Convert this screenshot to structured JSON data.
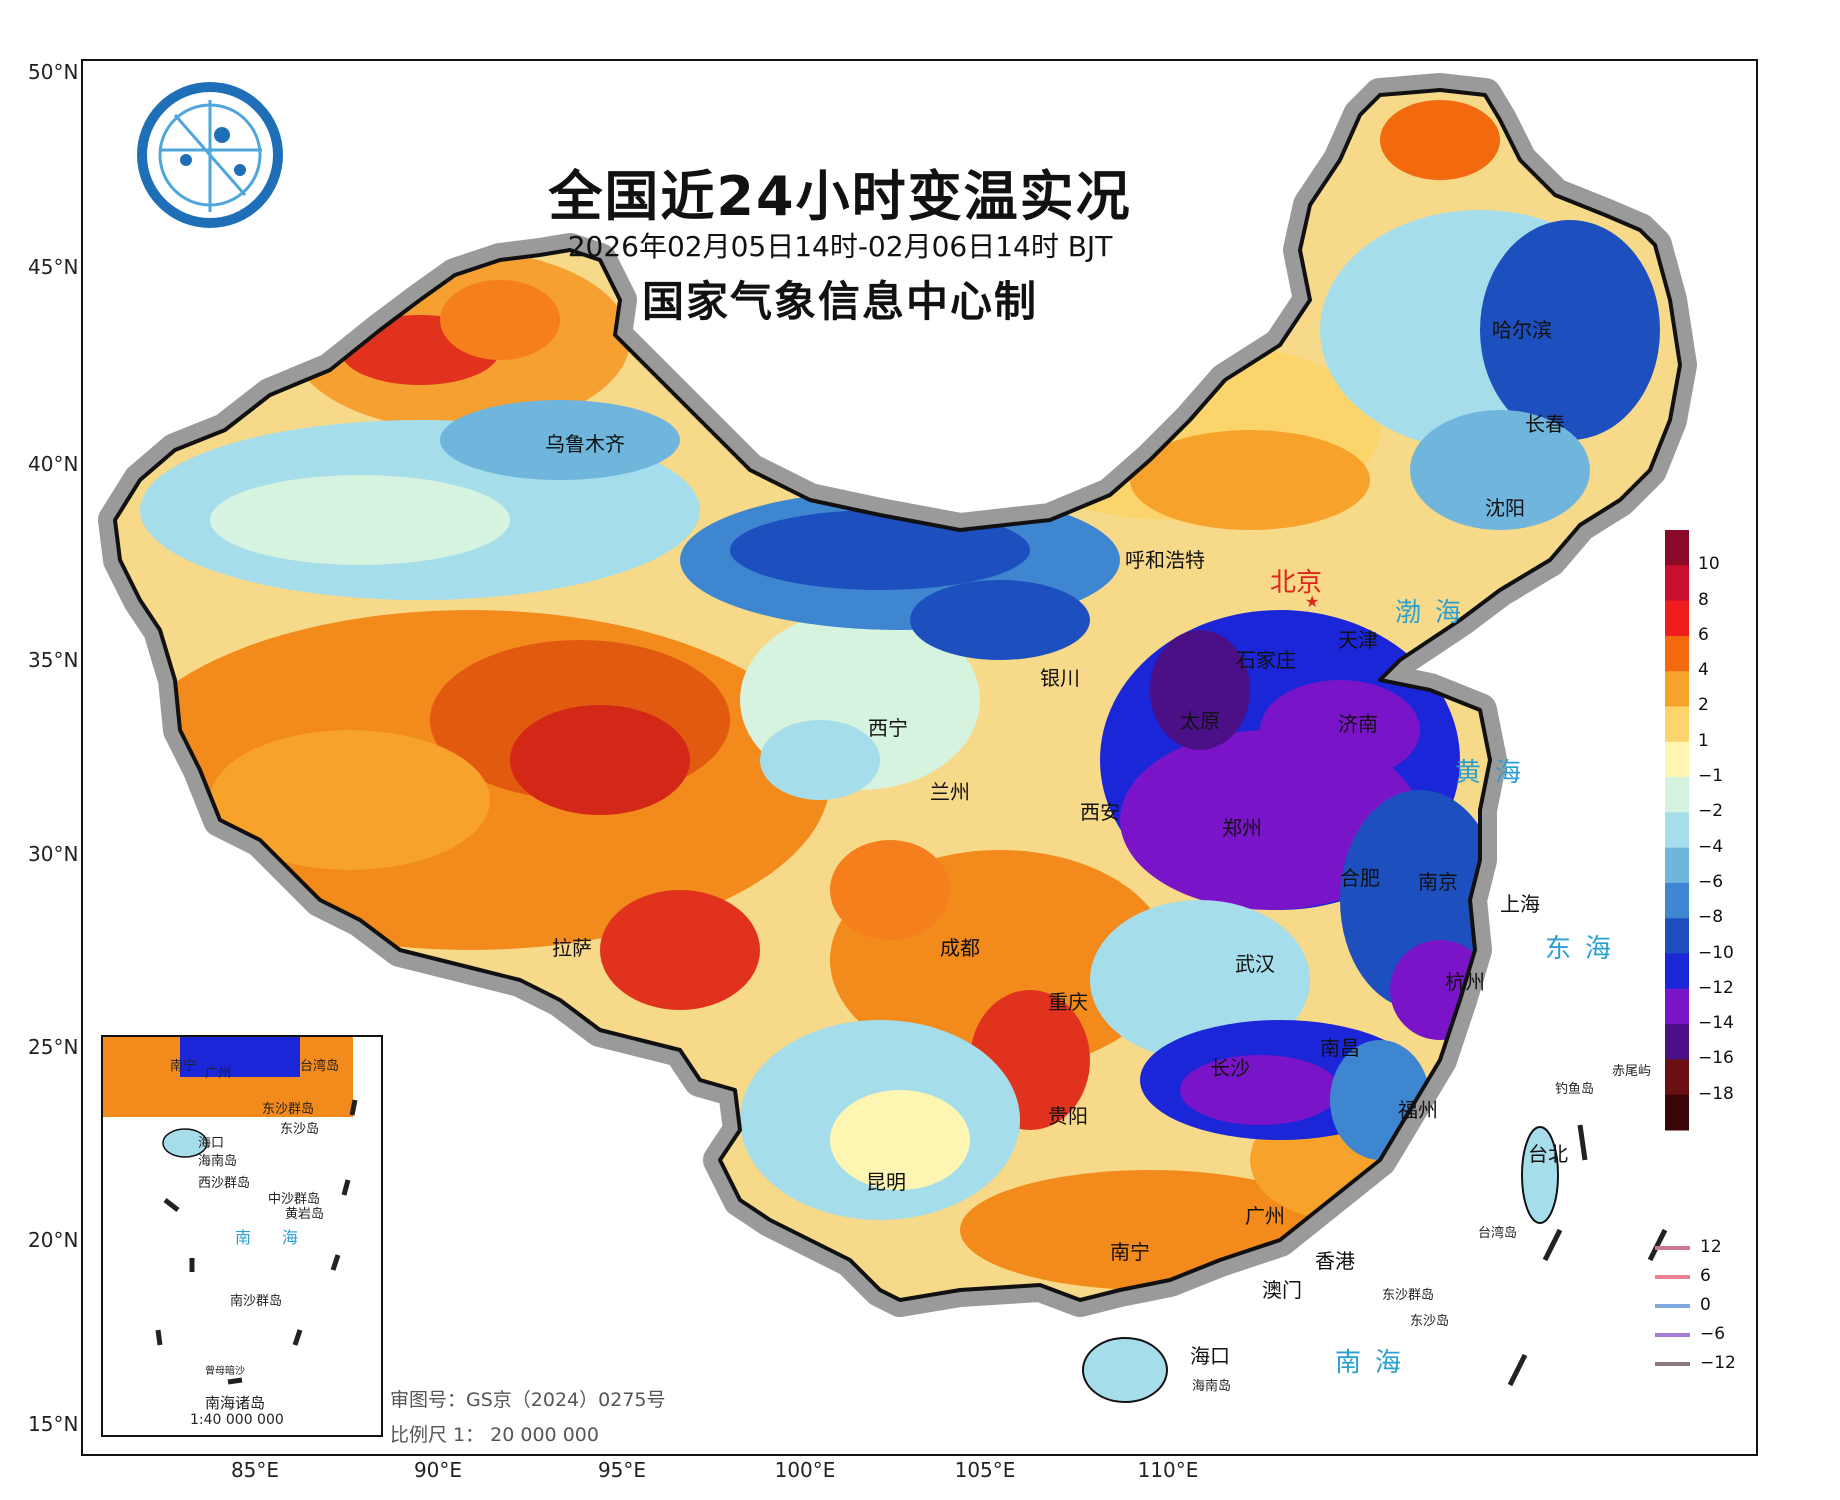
{
  "title": "全国近24小时变温实况",
  "period": "2026年02月05日14时-02月06日14时 BJT",
  "producer": "国家气象信息中心制",
  "lat_labels": [
    "50°N",
    "45°N",
    "40°N",
    "35°N",
    "30°N",
    "25°N",
    "20°N",
    "15°N"
  ],
  "lon_labels": [
    "85°E",
    "90°E",
    "95°E",
    "100°E",
    "105°E",
    "110°E"
  ],
  "cities": {
    "beijing": "北京",
    "urumqi": "乌鲁木齐",
    "harbin": "哈尔滨",
    "changchun": "长春",
    "shenyang": "沈阳",
    "hohhot": "呼和浩特",
    "tianjin": "天津",
    "shijiazhuang": "石家庄",
    "taiyuan": "太原",
    "jinan": "济南",
    "yinchuan": "银川",
    "xining": "西宁",
    "lanzhou": "兰州",
    "xian": "西安",
    "zhengzhou": "郑州",
    "hefei": "合肥",
    "nanjing": "南京",
    "shanghai": "上海",
    "hangzhou": "杭州",
    "wuhan": "武汉",
    "chengdu": "成都",
    "chongqing": "重庆",
    "lhasa": "拉萨",
    "changsha": "长沙",
    "nanchang": "南昌",
    "fuzhou": "福州",
    "taipei": "台北",
    "guiyang": "贵阳",
    "kunming": "昆明",
    "nanning": "南宁",
    "guangzhou": "广州",
    "hongkong": "香港",
    "macau": "澳门",
    "haikou": "海口"
  },
  "seas": {
    "bohai": "渤海",
    "huanghai": "黄海",
    "donghai": "东海",
    "nanhai": "南海"
  },
  "islands": {
    "hainan": "海南岛",
    "dongsha": "东沙群岛",
    "dongsha2": "东沙岛",
    "taiwan": "台湾岛",
    "diaoyu": "钓鱼岛",
    "chiwei": "赤尾屿"
  },
  "inset": {
    "title": "南海诸岛",
    "scale": "1:40 000 000",
    "labels": [
      "南宁",
      "广州",
      "台湾岛",
      "海口",
      "海南岛",
      "东沙群岛",
      "东沙岛",
      "西沙群岛",
      "中沙群岛",
      "黄岩岛",
      "南沙群岛",
      "南",
      "海",
      "曾母暗沙"
    ]
  },
  "review_no": "审图号：GS京（2024）0275号",
  "scale": "比例尺 1： 20 000 000",
  "colorbar": {
    "labels": [
      "10",
      "8",
      "6",
      "4",
      "2",
      "1",
      "−1",
      "−2",
      "−4",
      "−6",
      "−8",
      "−10",
      "−12",
      "−14",
      "−16",
      "−18"
    ],
    "colors": [
      "#8b0a2a",
      "#c8102e",
      "#ee1c1c",
      "#f26a0d",
      "#f7a22a",
      "#fbd56b",
      "#fdf6b2",
      "#d6f3e0",
      "#a6ddea",
      "#6fb5dc",
      "#3f86d0",
      "#1e4fbf",
      "#1b26d8",
      "#7a14c8",
      "#4b0f86",
      "#6a0f12",
      "#3a0508"
    ],
    "colors_note": ""
  },
  "legend": {
    "values": [
      "12",
      "6",
      "0",
      "−6",
      "−12"
    ],
    "colors": [
      "#c9789a",
      "#e8808f",
      "#7fa7e0",
      "#a57bd4",
      "#8a7a80"
    ]
  },
  "colors": {
    "ocean": "#ffffff",
    "border_halo": "#8f8f8f",
    "border": "#111111",
    "sea_text": "#2a9fd0",
    "capital": "#e1251b"
  }
}
